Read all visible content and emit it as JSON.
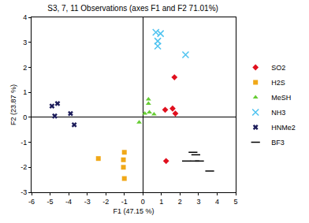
{
  "chart_data": {
    "type": "scatter",
    "title": "S3, 7, 11 Observations (axes F1 and F2 71.01%)",
    "x_label": "F1 (47.15 %)",
    "y_label": "F2 (23.87 %)",
    "xlim": [
      -6,
      5
    ],
    "xticks": [
      -6,
      -5,
      -4,
      -3,
      -2,
      -1,
      0,
      1,
      2,
      3,
      4,
      5
    ],
    "ylim": [
      -3,
      4
    ],
    "yticks": [
      -3,
      -2,
      -1,
      0,
      1,
      2,
      3,
      4
    ],
    "grid": false,
    "legend": "right",
    "series": [
      {
        "name": "SO2",
        "color": "#e0101e",
        "marker": "diamond",
        "x": [
          1.7,
          1.2,
          1.6,
          1.75,
          1.25
        ],
        "values": [
          1.6,
          0.3,
          0.35,
          0.15,
          -1.75
        ]
      },
      {
        "name": "H2S",
        "color": "#f0a818",
        "marker": "square",
        "x": [
          -2.4,
          -1.0,
          -1.05,
          -1.05,
          -1.0
        ],
        "values": [
          -1.65,
          -1.4,
          -1.7,
          -2.0,
          -2.45
        ]
      },
      {
        "name": "MeSH",
        "color": "#66cc33",
        "marker": "triangle-up",
        "x": [
          0.3,
          0.3,
          0.35,
          0.1,
          0.6,
          -0.2
        ],
        "values": [
          0.72,
          0.55,
          0.2,
          0.15,
          0.12,
          -0.2
        ]
      },
      {
        "name": "NH3",
        "color": "#4fc3f0",
        "marker": "x-thin-open",
        "x": [
          0.7,
          0.95,
          0.8,
          0.8,
          2.3
        ],
        "values": [
          3.4,
          3.35,
          3.05,
          2.85,
          2.5
        ]
      },
      {
        "name": "HNMe2",
        "color": "#1c1c5a",
        "marker": "x",
        "x": [
          -4.9,
          -4.6,
          -3.9,
          -4.75,
          -3.7
        ],
        "values": [
          0.45,
          0.55,
          0.15,
          0.05,
          -0.3
        ]
      },
      {
        "name": "BF3",
        "color": "#000000",
        "marker": "line-ew-open",
        "x": [
          2.7,
          2.85,
          3.05,
          2.35,
          2.8,
          3.6
        ],
        "values": [
          -1.4,
          -1.5,
          -1.75,
          -1.75,
          -1.75,
          -2.15
        ]
      }
    ]
  }
}
